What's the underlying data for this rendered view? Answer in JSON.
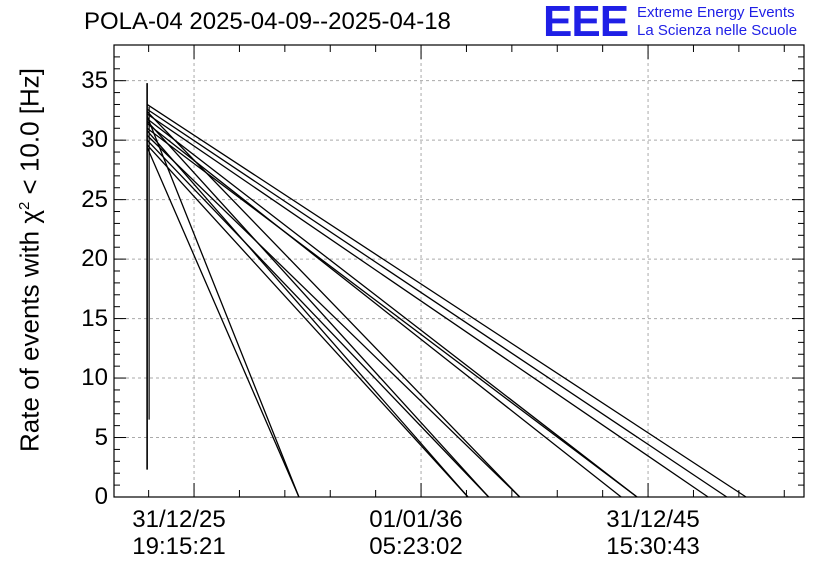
{
  "chart_data": {
    "type": "line",
    "title": "POLA-04 2025-04-09--2025-04-18",
    "logo": {
      "mark": "EEE",
      "line1": "Extreme Energy Events",
      "line2": "La Scienza nelle Scuole"
    },
    "ylabel": {
      "prefix": "Rate of events with ",
      "chi": "χ",
      "sup": "2",
      "suffix": " < 10.0 [Hz]"
    },
    "ylim": [
      0,
      38
    ],
    "y_ticks": [
      0,
      5,
      10,
      15,
      20,
      25,
      30,
      35
    ],
    "x_ticks": [
      {
        "pos": 0.116,
        "date": "31/12/25",
        "time": "19:15:21"
      },
      {
        "pos": 0.445,
        "date": "01/01/36",
        "time": "05:23:02"
      },
      {
        "pos": 0.774,
        "date": "31/12/45",
        "time": "15:30:43"
      }
    ],
    "grid": true,
    "spike": {
      "x": 0.048,
      "y_min": 2.3,
      "y_max": 34.8,
      "y_inner_min": 6.5
    },
    "series": [
      {
        "start": [
          0.048,
          33.0
        ],
        "end": [
          0.916,
          0
        ]
      },
      {
        "start": [
          0.048,
          32.6
        ],
        "end": [
          0.888,
          0
        ]
      },
      {
        "start": [
          0.048,
          32.2
        ],
        "end": [
          0.861,
          0
        ]
      },
      {
        "start": [
          0.048,
          31.8
        ],
        "end": [
          0.758,
          0
        ]
      },
      {
        "start": [
          0.048,
          31.4
        ],
        "end": [
          0.735,
          0
        ]
      },
      {
        "start": [
          0.048,
          31.0
        ],
        "end": [
          0.758,
          0
        ]
      },
      {
        "start": [
          0.048,
          32.4
        ],
        "end": [
          0.588,
          0
        ]
      },
      {
        "start": [
          0.048,
          31.6
        ],
        "end": [
          0.543,
          0
        ]
      },
      {
        "start": [
          0.048,
          30.8
        ],
        "end": [
          0.513,
          0
        ]
      },
      {
        "start": [
          0.048,
          30.4
        ],
        "end": [
          0.588,
          0
        ]
      },
      {
        "start": [
          0.048,
          30.0
        ],
        "end": [
          0.543,
          0
        ]
      },
      {
        "start": [
          0.048,
          29.6
        ],
        "end": [
          0.513,
          0
        ]
      },
      {
        "start": [
          0.048,
          32.0
        ],
        "end": [
          0.268,
          0
        ]
      },
      {
        "start": [
          0.048,
          29.4
        ],
        "end": [
          0.268,
          0
        ]
      }
    ]
  }
}
